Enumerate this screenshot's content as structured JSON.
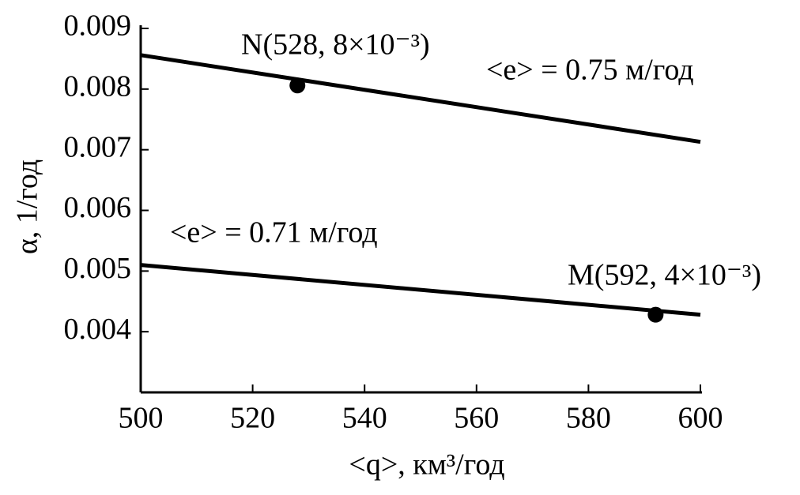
{
  "chart_data": {
    "type": "line",
    "xlabel": "<q>, км³/год",
    "ylabel": "α, 1/год",
    "series": [
      {
        "name": "<e> = 0.75 м/год",
        "color": "#000000",
        "x": [
          500,
          600
        ],
        "values": [
          0.00856,
          0.00713
        ]
      },
      {
        "name": "<e> = 0.71 м/год",
        "color": "#000000",
        "x": [
          500,
          600
        ],
        "values": [
          0.0051,
          0.00428
        ]
      }
    ],
    "points": [
      {
        "label": "N(528, 8×10⁻³)",
        "x": 528,
        "y": 0.00806
      },
      {
        "label": "M(592, 4×10⁻³)",
        "x": 592,
        "y": 0.00428
      }
    ],
    "xlim": [
      500,
      600
    ],
    "xticks": [
      500,
      520,
      540,
      560,
      580,
      600
    ],
    "ylim": [
      0.003,
      0.009
    ],
    "yticks": [
      0.004,
      0.005,
      0.006,
      0.007,
      0.008,
      0.009
    ],
    "grid": false
  }
}
